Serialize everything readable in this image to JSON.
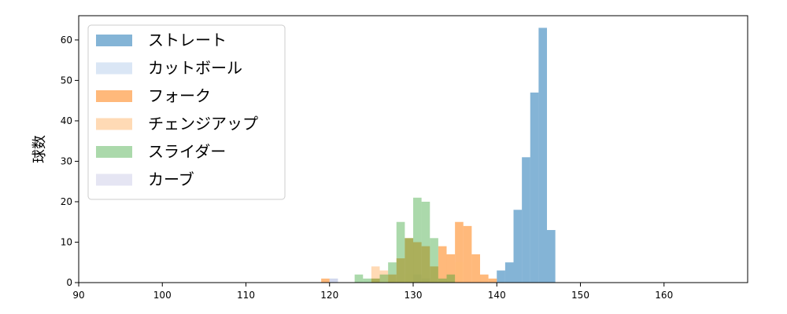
{
  "chart_data": {
    "type": "bar",
    "subtype": "histogram",
    "title": "",
    "xlabel": "",
    "ylabel": "球数",
    "xlim": [
      90,
      170
    ],
    "ylim": [
      0,
      66
    ],
    "xticks": [
      90,
      100,
      110,
      120,
      130,
      140,
      150,
      160
    ],
    "yticks": [
      0,
      10,
      20,
      30,
      40,
      50,
      60
    ],
    "bin_width": 1,
    "legend_position": "upper-left",
    "grid": false,
    "series": [
      {
        "name": "ストレート",
        "color": "#1f77b4",
        "opacity": 0.55,
        "bins": [
          {
            "x0": 140,
            "count": 3
          },
          {
            "x0": 141,
            "count": 5
          },
          {
            "x0": 142,
            "count": 18
          },
          {
            "x0": 143,
            "count": 31
          },
          {
            "x0": 144,
            "count": 47
          },
          {
            "x0": 145,
            "count": 63
          },
          {
            "x0": 146,
            "count": 13
          }
        ]
      },
      {
        "name": "カットボール",
        "color": "#aec7e8",
        "opacity": 0.45,
        "bins": [
          {
            "x0": 120,
            "count": 1
          },
          {
            "x0": 130,
            "count": 2
          },
          {
            "x0": 131,
            "count": 1
          }
        ]
      },
      {
        "name": "フォーク",
        "color": "#ff7f0e",
        "opacity": 0.55,
        "bins": [
          {
            "x0": 119,
            "count": 1
          },
          {
            "x0": 125,
            "count": 1
          },
          {
            "x0": 127,
            "count": 2
          },
          {
            "x0": 128,
            "count": 6
          },
          {
            "x0": 129,
            "count": 11
          },
          {
            "x0": 130,
            "count": 10
          },
          {
            "x0": 131,
            "count": 9
          },
          {
            "x0": 132,
            "count": 4
          },
          {
            "x0": 133,
            "count": 9
          },
          {
            "x0": 134,
            "count": 7
          },
          {
            "x0": 135,
            "count": 15
          },
          {
            "x0": 136,
            "count": 14
          },
          {
            "x0": 137,
            "count": 7
          },
          {
            "x0": 138,
            "count": 2
          },
          {
            "x0": 139,
            "count": 1
          }
        ]
      },
      {
        "name": "チェンジアップ",
        "color": "#ffbb78",
        "opacity": 0.55,
        "bins": [
          {
            "x0": 125,
            "count": 4
          },
          {
            "x0": 126,
            "count": 3
          },
          {
            "x0": 127,
            "count": 1
          },
          {
            "x0": 129,
            "count": 2
          },
          {
            "x0": 130,
            "count": 2
          },
          {
            "x0": 131,
            "count": 1
          },
          {
            "x0": 135,
            "count": 5
          }
        ]
      },
      {
        "name": "スライダー",
        "color": "#2ca02c",
        "opacity": 0.4,
        "bins": [
          {
            "x0": 123,
            "count": 2
          },
          {
            "x0": 124,
            "count": 1
          },
          {
            "x0": 125,
            "count": 1
          },
          {
            "x0": 126,
            "count": 2
          },
          {
            "x0": 127,
            "count": 5
          },
          {
            "x0": 128,
            "count": 15
          },
          {
            "x0": 129,
            "count": 11
          },
          {
            "x0": 130,
            "count": 21
          },
          {
            "x0": 131,
            "count": 20
          },
          {
            "x0": 132,
            "count": 11
          },
          {
            "x0": 133,
            "count": 1
          },
          {
            "x0": 134,
            "count": 2
          }
        ]
      },
      {
        "name": "カーブ",
        "color": "#c5c5e5",
        "opacity": 0.45,
        "bins": [
          {
            "x0": 120,
            "count": 1
          }
        ]
      }
    ]
  }
}
